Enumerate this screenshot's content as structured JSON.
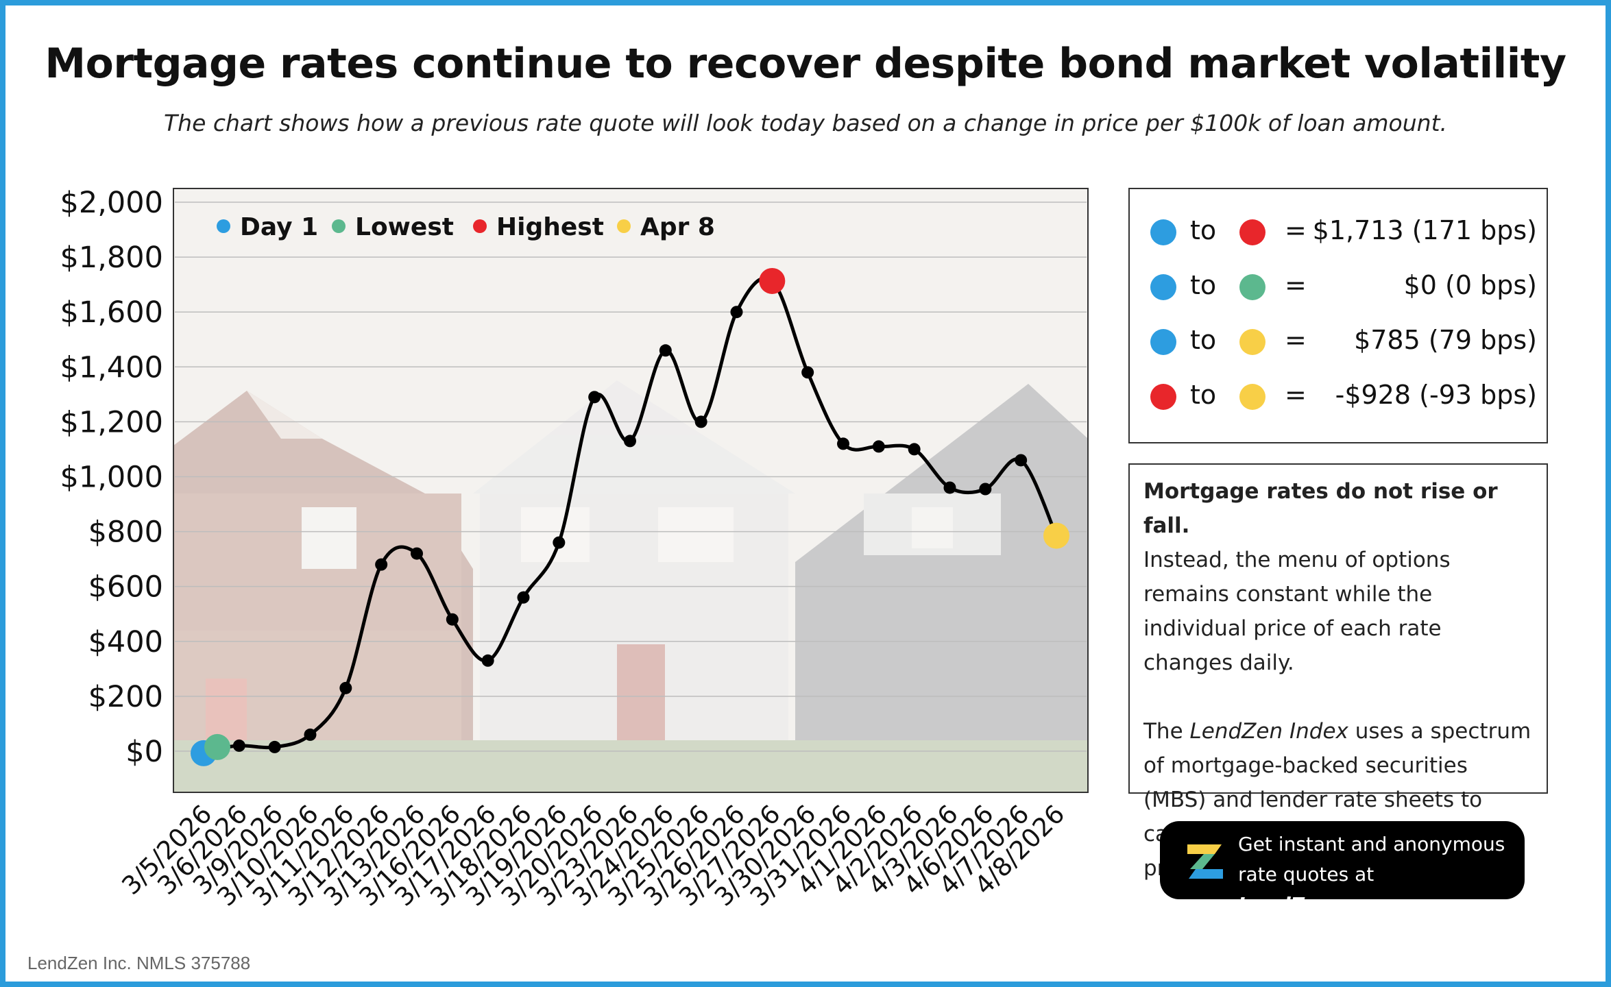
{
  "title": "Mortgage rates continue to recover despite bond market volatility",
  "subtitle": "The chart shows how a previous rate quote will look today based on a change in price per $100k of loan amount.",
  "colors": {
    "day1": "#2d9de0",
    "lowest": "#5cb88e",
    "highest": "#e8262b",
    "apr8": "#f8cf47",
    "line": "#000000"
  },
  "chart_data": {
    "type": "line",
    "title": "",
    "xlabel": "",
    "ylabel": "",
    "ylim": [
      -150,
      2050
    ],
    "yticks": [
      0,
      200,
      400,
      600,
      800,
      1000,
      1200,
      1400,
      1600,
      1800,
      2000
    ],
    "ytick_labels": [
      "$0",
      "$200",
      "$400",
      "$600",
      "$800",
      "$1,000",
      "$1,200",
      "$1,400",
      "$1,600",
      "$1,800",
      "$2,000"
    ],
    "grid": true,
    "categories": [
      "3/5/2026",
      "3/6/2026",
      "3/9/2026",
      "3/10/2026",
      "3/11/2026",
      "3/12/2026",
      "3/13/2026",
      "3/16/2026",
      "3/17/2026",
      "3/18/2026",
      "3/19/2026",
      "3/20/2026",
      "3/23/2026",
      "3/24/2026",
      "3/25/2026",
      "3/26/2026",
      "3/27/2026",
      "3/30/2026",
      "3/31/2026",
      "4/1/2026",
      "4/2/2026",
      "4/3/2026",
      "4/6/2026",
      "4/7/2026",
      "4/8/2026"
    ],
    "series": [
      {
        "name": "Change in price per $100k",
        "values": [
          0,
          20,
          15,
          60,
          230,
          680,
          720,
          480,
          330,
          560,
          760,
          1290,
          1130,
          1460,
          1200,
          1600,
          1713,
          1380,
          1120,
          1110,
          1100,
          960,
          955,
          1060,
          785
        ]
      }
    ],
    "highlights": [
      {
        "label": "Day 1",
        "index": 0,
        "value": 0
      },
      {
        "label": "Lowest",
        "index": 0,
        "value": 0
      },
      {
        "label": "Highest",
        "index": 16,
        "value": 1713
      },
      {
        "label": "Apr 8",
        "index": 24,
        "value": 785
      }
    ],
    "legend": [
      "Day 1",
      "Lowest",
      "Highest",
      "Apr 8"
    ],
    "legend_position": "top-left"
  },
  "comparisons": [
    {
      "to_word": "to",
      "eq": "=",
      "value": "$1,713 (171 bps)"
    },
    {
      "to_word": "to",
      "eq": "=",
      "value": "$0 (0 bps)"
    },
    {
      "to_word": "to",
      "eq": "=",
      "value": "$785 (79 bps)"
    },
    {
      "to_word": "to",
      "eq": "=",
      "value": "-$928 (-93 bps)"
    }
  ],
  "note": {
    "heading": "Mortgage rates do not rise or fall.",
    "body1": "Instead, the menu of options remains constant while the individual price of each rate changes daily.",
    "body2_pre": "The ",
    "body2_em": "LendZen Index",
    "body2_post": " uses a spectrum of mortgage-backed securities (MBS) and lender rate sheets to calculate an average change in price for all rates."
  },
  "cta": {
    "line1": "Get instant and anonymous",
    "line2_pre": "rate quotes at ",
    "brand": "LendZen.com"
  },
  "footer": "LendZen Inc. NMLS 375788"
}
